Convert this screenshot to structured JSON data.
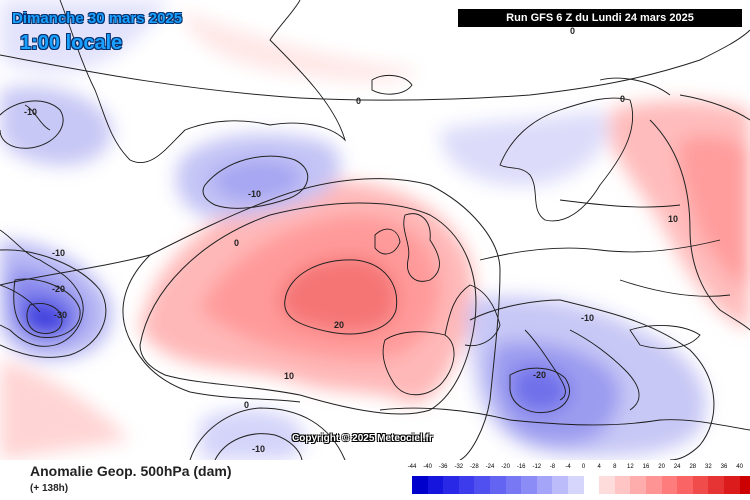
{
  "header": {
    "date_line": "Dimanche 30 mars 2025",
    "time_line": "1:00 locale",
    "run_info": "Run GFS 6 Z du Lundi 24 mars 2025"
  },
  "map": {
    "copyright": "Copyright © 2025 Meteociel.fr",
    "contour_labels": {
      "zero_top_right": "0",
      "zero_north_atlantic": "0",
      "zero_west": "0",
      "zero_south": "0",
      "zero_europe": "0",
      "minus10_greenland_west": "-10",
      "minus10_greenland_east": "-10",
      "minus10_canada": "-10",
      "minus20_canada": "-20",
      "minus30_canada": "-30",
      "plus20_atlantic": "20",
      "plus10_atlantic": "10",
      "minus10_balkans": "-10",
      "minus20_mediterranean": "-20",
      "plus10_russia": "10",
      "minus10_south": "-10"
    },
    "colors": {
      "low_anomaly": "#3b3be6",
      "high_anomaly": "#f05050",
      "neutral": "#ffffff",
      "contour": "#222222"
    }
  },
  "legend": {
    "product": "Anomalie Geop. 500hPa (dam)",
    "lead": "(+ 138h)",
    "scale_values": [
      "-44",
      "-40",
      "-36",
      "-32",
      "-28",
      "-24",
      "-20",
      "-16",
      "-12",
      "-8",
      "-4",
      "0",
      "4",
      "8",
      "12",
      "16",
      "20",
      "24",
      "28",
      "32",
      "36",
      "40"
    ],
    "scale_colors": [
      "#0000cc",
      "#1515dd",
      "#2828e6",
      "#3c3cec",
      "#5050f0",
      "#6464f2",
      "#7878f4",
      "#8c8cf6",
      "#a4a4f8",
      "#bcbcfa",
      "#d6d6fc",
      "#ffffff",
      "#ffdcdc",
      "#ffc4c4",
      "#ffacac",
      "#ff9494",
      "#ff7c7c",
      "#fa6464",
      "#f04c4c",
      "#e63434",
      "#dc1c1c",
      "#cc0000"
    ]
  }
}
